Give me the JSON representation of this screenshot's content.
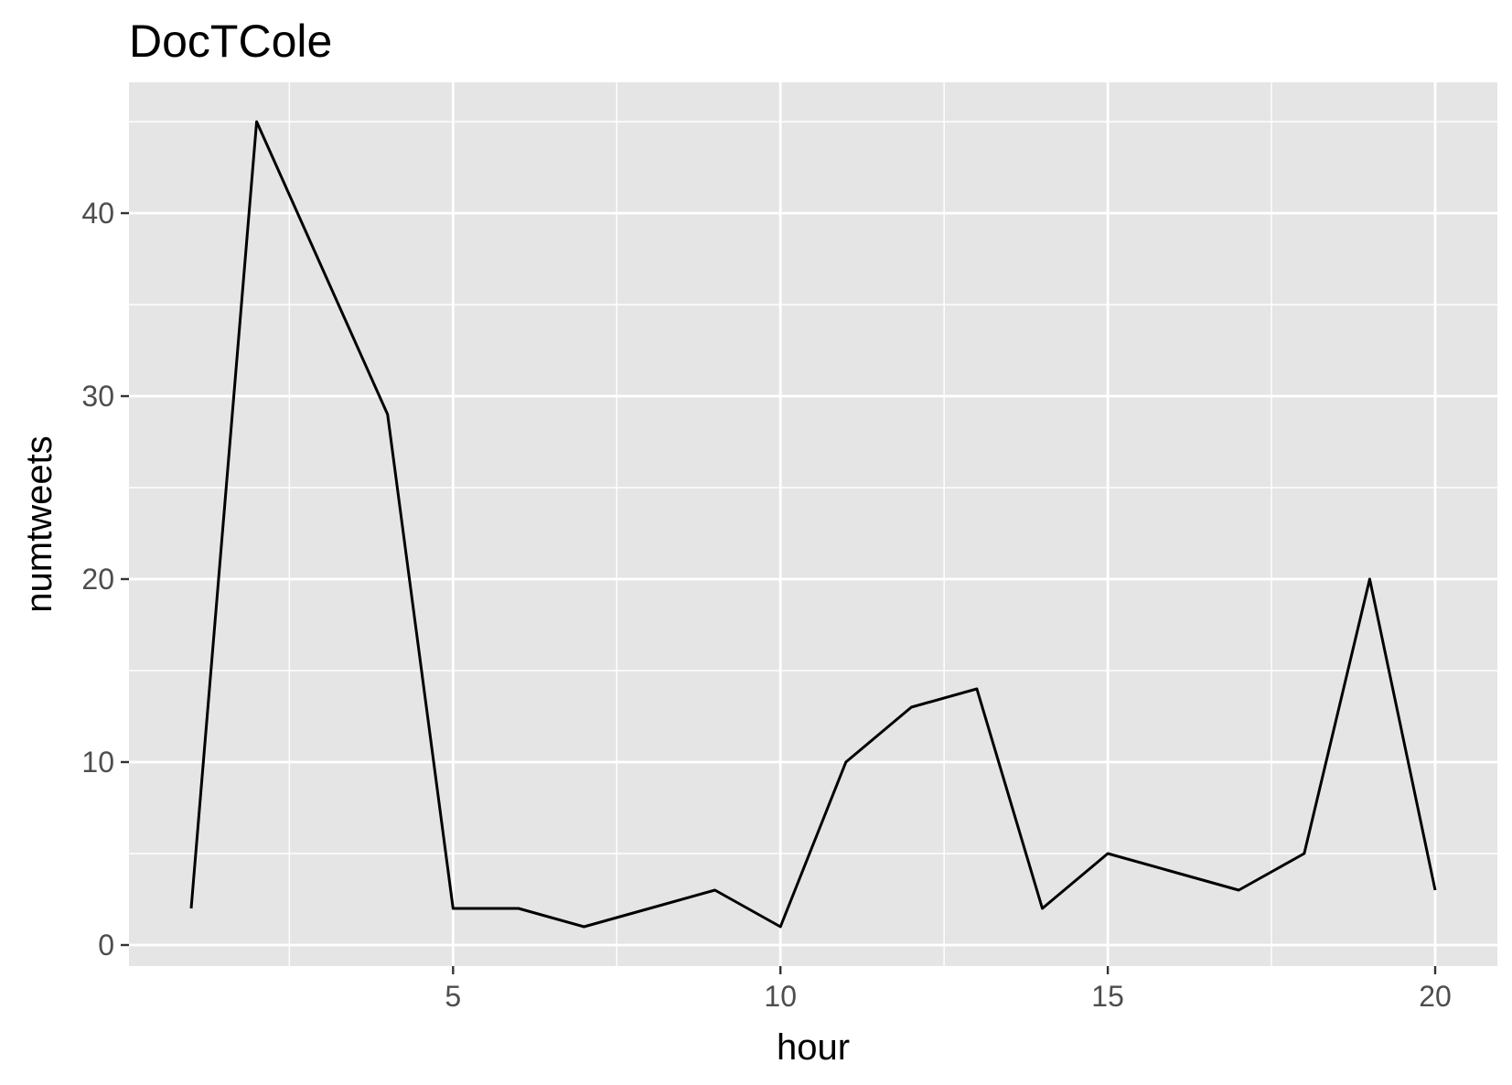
{
  "chart_data": {
    "type": "line",
    "title": "DocTCole",
    "xlabel": "hour",
    "ylabel": "numtweets",
    "x": [
      1,
      2,
      3,
      4,
      5,
      6,
      7,
      8,
      9,
      10,
      11,
      12,
      13,
      14,
      15,
      16,
      17,
      18,
      19,
      20
    ],
    "series": [
      {
        "values": [
          2,
          45,
          37,
          29,
          2,
          2,
          1,
          2,
          3,
          1,
          10,
          13,
          14,
          2,
          5,
          4,
          3,
          5,
          20,
          3
        ]
      }
    ],
    "xlim": [
      0.05,
      20.95
    ],
    "ylim": [
      -1.15,
      47.15
    ],
    "x_ticks": [
      5,
      10,
      15,
      20
    ],
    "x_tick_labels": [
      "5",
      "10",
      "15",
      "20"
    ],
    "x_minor_ticks": [
      2.5,
      7.5,
      12.5,
      17.5
    ],
    "y_ticks": [
      0,
      10,
      20,
      30,
      40
    ],
    "y_tick_labels": [
      "0",
      "10",
      "20",
      "30",
      "40"
    ],
    "y_minor_ticks": [
      5,
      15,
      25,
      35,
      45
    ],
    "grid": true,
    "legend": "none",
    "colors": {
      "panel_background": "#e5e5e5",
      "grid_line": "#ffffff",
      "line": "#000000",
      "tick_mark": "#333333",
      "tick_label": "#4d4d4d"
    }
  }
}
